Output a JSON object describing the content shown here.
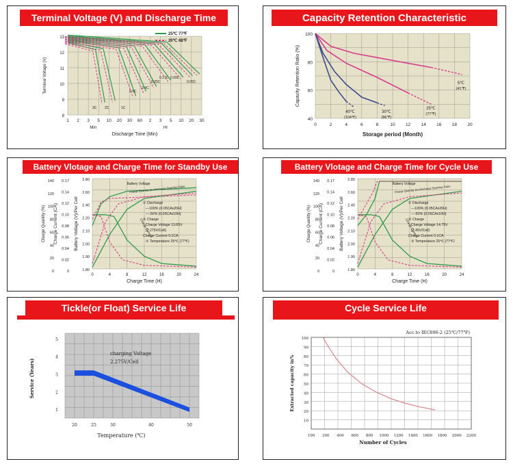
{
  "colors": {
    "header_red": "#e8161b",
    "plot_bg": "#e6e1c9",
    "grid": "#9a9a8a",
    "green": "#2e9a4c",
    "pink": "#d83b8c",
    "navy": "#3a4a8a",
    "tickle_bar": "#1a4fe0",
    "cycle_curve": "#d9868c"
  },
  "panels": {
    "p1": {
      "title": "Terminal Voltage (V) and Discharge Time"
    },
    "p2": {
      "title": "Capacity Retention Characteristic"
    },
    "p3": {
      "title": "Battery Vlotage and Charge Time for Standby Use"
    },
    "p4": {
      "title": "Battery Vlotage and Charge Time for Cycle Use"
    },
    "p5": {
      "title": "Tickle(or Float) Service Life"
    },
    "p6": {
      "title": "Cycle Service Life"
    }
  },
  "chart_data": [
    {
      "id": "terminal_voltage",
      "type": "line",
      "title": "Terminal Voltage (V) and Discharge Time",
      "xlabel": "Discharge Time (Min)",
      "ylabel": "Terminal Voltage (V)",
      "x_ticks": [
        "1",
        "2",
        "3",
        "5",
        "10",
        "20",
        "30",
        "60",
        "2",
        "3",
        "5",
        "10",
        "20",
        "30"
      ],
      "x_unit_labels": [
        "Min",
        "Hr"
      ],
      "y_ticks": [
        "8",
        "9",
        "10",
        "11",
        "12",
        "13"
      ],
      "ylim": [
        8,
        13
      ],
      "legend": [
        "25℃ 77℉",
        "20℃ 68℉"
      ],
      "annotations": [
        "3C",
        "2C",
        "1C",
        "0.6C",
        "0.4C",
        "0.25C",
        "0.17C",
        "0.09C",
        "0.05C"
      ],
      "series": [
        {
          "name": "25℃ 77℉",
          "style": "solid"
        },
        {
          "name": "20℃ 68℉",
          "style": "dashed"
        }
      ]
    },
    {
      "id": "capacity_retention",
      "type": "line",
      "title": "Capacity Retention Characteristic",
      "xlabel": "Storage period (Month)",
      "ylabel": "Capacity Retention Ratio (%)",
      "xlim": [
        0,
        20
      ],
      "ylim": [
        40,
        100
      ],
      "x_ticks": [
        "0",
        "2",
        "4",
        "6",
        "8",
        "10",
        "12",
        "14",
        "16",
        "18",
        "20"
      ],
      "y_ticks": [
        "40",
        "60",
        "80",
        "100"
      ],
      "series": [
        {
          "name": "5℃ (41℉)",
          "x": [
            0,
            2,
            5,
            10,
            15,
            19
          ],
          "y": [
            100,
            91,
            86,
            81,
            76,
            71
          ]
        },
        {
          "name": "25℃ (77℉)",
          "x": [
            0,
            1.5,
            4,
            8,
            12,
            15
          ],
          "y": [
            100,
            88,
            79,
            69,
            58,
            50
          ]
        },
        {
          "name": "30℃ (86℉)",
          "x": [
            0,
            1,
            2.5,
            4,
            6,
            8,
            9
          ],
          "y": [
            100,
            86,
            73,
            64,
            55,
            51,
            49
          ]
        },
        {
          "name": "40℃ (104℉)",
          "x": [
            0,
            1,
            2,
            3,
            4,
            5
          ],
          "y": [
            100,
            83,
            67,
            59,
            52,
            48
          ]
        }
      ]
    },
    {
      "id": "standby_charge",
      "type": "line",
      "title": "Battery Vlotage and Charge Time for Standby Use",
      "xlabel": "Charge Time (H)",
      "ylabels": [
        "Charge Quantity (%)",
        "Charge Current (CA)",
        "Battery Voltage (V)/Per Cell"
      ],
      "x_ticks": [
        "0",
        "4",
        "8",
        "12",
        "16",
        "20",
        "24"
      ],
      "y_ticks_quantity": [
        "0",
        "20",
        "40",
        "60",
        "80",
        "100",
        "120",
        "140"
      ],
      "y_ticks_current": [
        "0",
        "0.02",
        "0.04",
        "0.06",
        "0.08",
        "0.10",
        "0.12",
        "0.14",
        "0.17"
      ],
      "y_ticks_voltage": [
        "1.80",
        "1.90",
        "2.00",
        "2.10",
        "2.20",
        "2.40",
        "2.60",
        "2.80"
      ],
      "curve_labels": [
        "Battery Voltage",
        "Charge Quantity (to-Discharge Quantity) Ratio",
        "Charge Current"
      ],
      "notes": [
        "① Discharge",
        "—100% (0.05CAx20H)",
        "----50% (0.05CAx10H)",
        "② Charge",
        "Charge Voltage 13.65V",
        "(2.275V/Cell)",
        "Charge Current 0.1CA",
        "③ Temperature 25℃ (77℉)"
      ]
    },
    {
      "id": "cycle_charge",
      "type": "line",
      "title": "Battery Vlotage and Charge Time for Cycle Use",
      "xlabel": "Charge Time (H)",
      "ylabels": [
        "Charge Quantity (%)",
        "Charge Current (CA)",
        "Battery Voltage (V)/Per Cell"
      ],
      "x_ticks": [
        "0",
        "4",
        "8",
        "12",
        "16",
        "20",
        "24"
      ],
      "y_ticks_quantity": [
        "0",
        "20",
        "40",
        "60",
        "80",
        "100",
        "120",
        "140"
      ],
      "y_ticks_current": [
        "0",
        "0.02",
        "0.04",
        "0.06",
        "0.08",
        "0.10",
        "0.12",
        "0.14",
        "0.17"
      ],
      "y_ticks_voltage": [
        "1.80",
        "1.90",
        "2.00",
        "2.10",
        "2.20",
        "2.40",
        "2.60",
        "2.80"
      ],
      "curve_labels": [
        "Battery Voltage",
        "Charge Quantity (to-Discharge Quantity) Ratio",
        "Charge Current"
      ],
      "notes": [
        "① Discharge",
        "—100% (0.05CAx20H)",
        "----50% (0.05CAx10H)",
        "② Charge",
        "Charge Voltage 14.75V",
        "(2.45V/Cell)",
        "Charge Current 0.1CA",
        "③ Temperature 25℃ (77℉)"
      ]
    },
    {
      "id": "float_life",
      "type": "area",
      "title": "Tickle(or Float) Service Life",
      "xlabel": "Temperature (℃)",
      "ylabel": "Service (Years)",
      "x_ticks": [
        "20",
        "25",
        "30",
        "40",
        "50"
      ],
      "y_ticks": [
        "1",
        "2",
        "3",
        "4",
        "5"
      ],
      "annotation": [
        "charging Voltage",
        "2.275V/Cell"
      ],
      "band": {
        "x": [
          20,
          25,
          50
        ],
        "y_upper": [
          3.2,
          3.2,
          1.1
        ],
        "y_lower": [
          2.9,
          2.9,
          0.85
        ]
      }
    },
    {
      "id": "cycle_life",
      "type": "line",
      "title": "Cycle Service Life",
      "xlabel": "Number of Cycles",
      "ylabel": "Extracted capacity in%",
      "note": "Acc.to IEC896-2 (25℃/77℉)",
      "x_ticks": [
        "100",
        "300",
        "400",
        "600",
        "800",
        "1000",
        "1200",
        "1400",
        "1600",
        "1800",
        "2000",
        "2200"
      ],
      "y_ticks": [
        "10",
        "20",
        "30",
        "40",
        "50",
        "60",
        "70",
        "80",
        "90",
        "100"
      ],
      "series": [
        {
          "name": "",
          "x": [
            260,
            350,
            450,
            600,
            800,
            1000,
            1200,
            1400,
            1600,
            1800
          ],
          "y": [
            100,
            88,
            76,
            62,
            49,
            40,
            33,
            28,
            24,
            21
          ]
        }
      ]
    }
  ]
}
